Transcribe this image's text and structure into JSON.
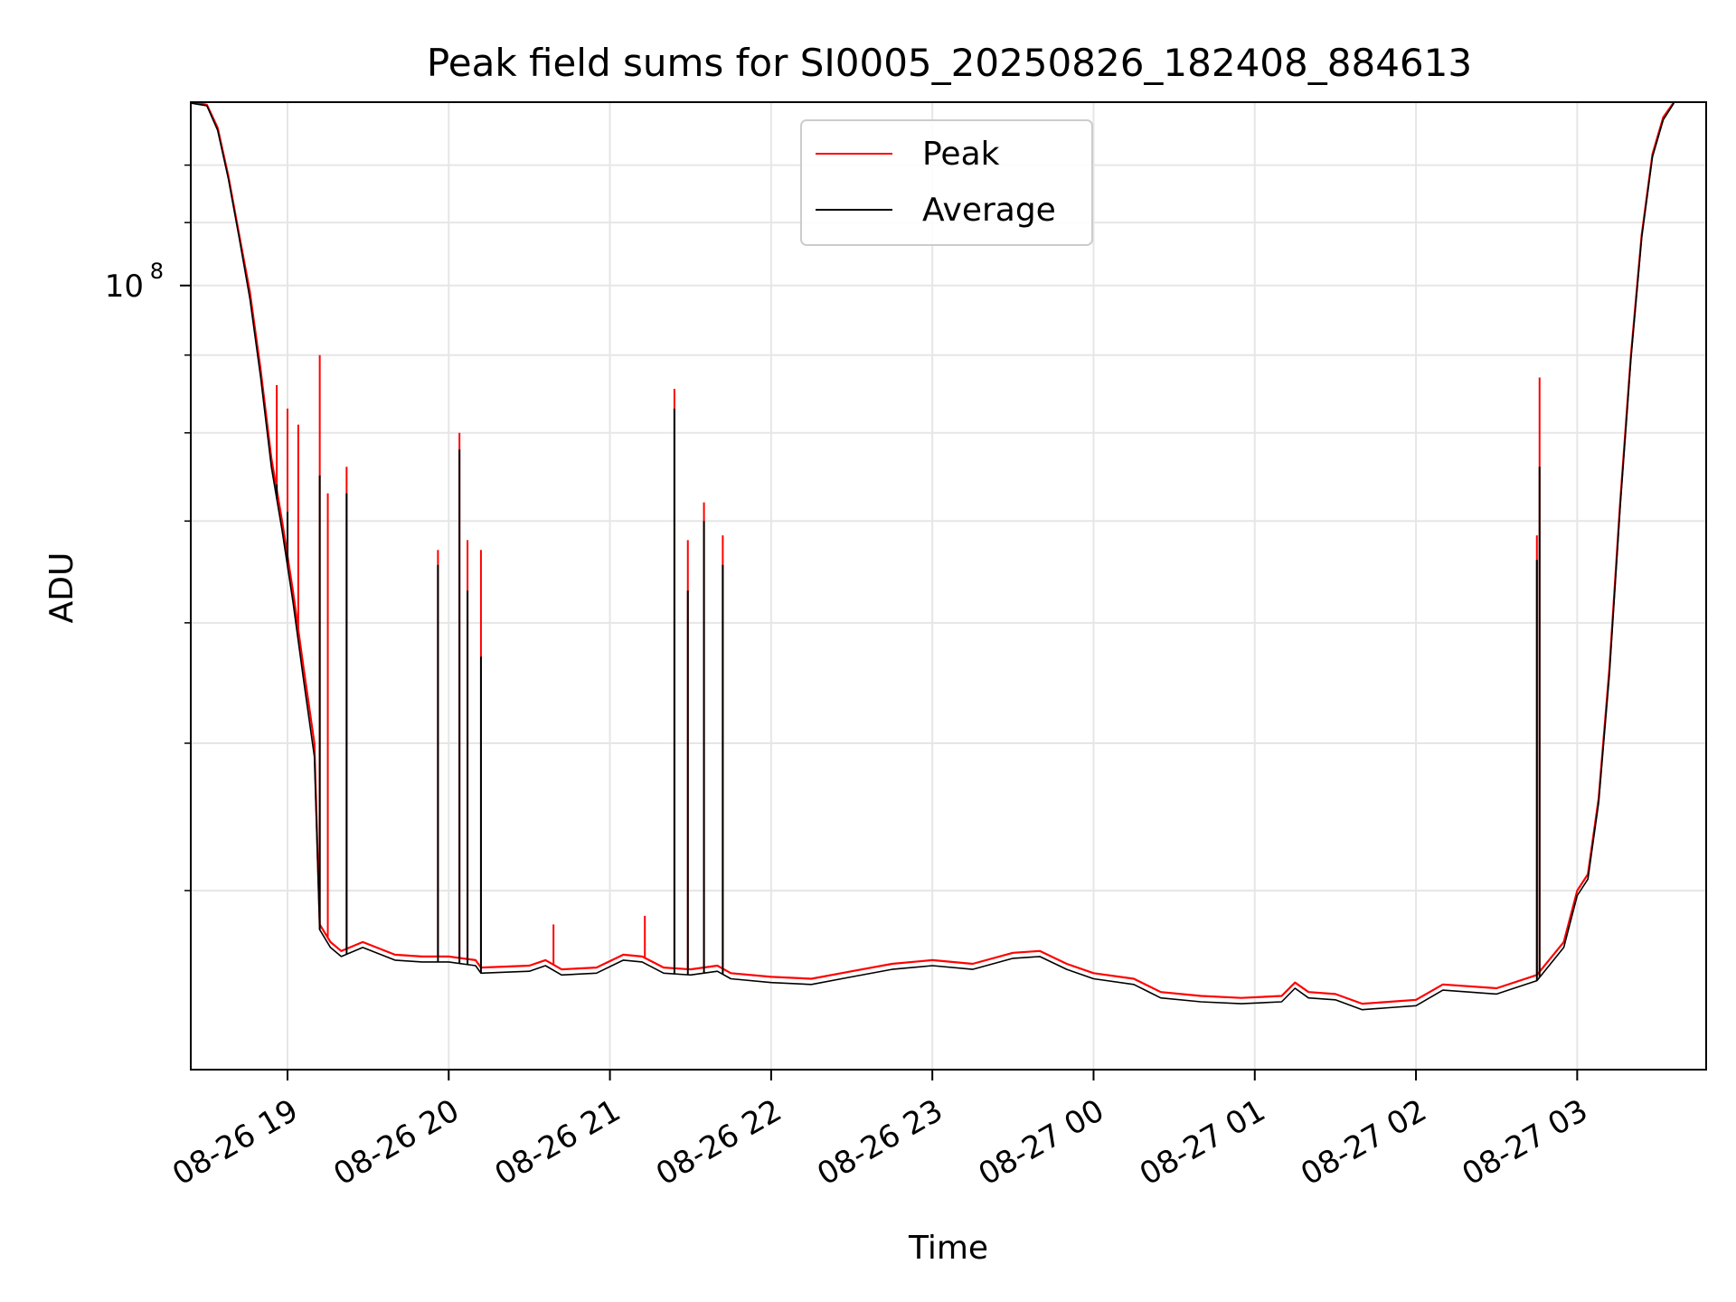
{
  "chart_data": {
    "type": "line",
    "title": "Peak field sums for SI0005_20250826_182408_884613",
    "xlabel": "Time",
    "ylabel": "ADU",
    "y_scale": "log",
    "ylim": [
      30500000,
      132000000
    ],
    "xlim": [
      "2025-08-26 18:24",
      "2025-08-27 03:48"
    ],
    "x_ticks": [
      "08-26 19",
      "08-26 20",
      "08-26 21",
      "08-26 22",
      "08-26 23",
      "08-27 00",
      "08-27 01",
      "08-27 02",
      "08-27 03"
    ],
    "x_tick_times": [
      "2025-08-26 19:00",
      "2025-08-26 20:00",
      "2025-08-26 21:00",
      "2025-08-26 22:00",
      "2025-08-26 23:00",
      "2025-08-27 00:00",
      "2025-08-27 01:00",
      "2025-08-27 02:00",
      "2025-08-27 03:00"
    ],
    "y_ticks": [
      {
        "label": "10",
        "exponent": "8",
        "value": 100000000
      }
    ],
    "y_minor_ticks": [
      40000000,
      50000000,
      60000000,
      70000000,
      80000000,
      90000000,
      110000000,
      120000000
    ],
    "grid": true,
    "legend_position": "upper center",
    "series": [
      {
        "name": "Peak",
        "color": "#ff0000",
        "points": [
          [
            "2025-08-26 18:24",
            132000000
          ],
          [
            "2025-08-26 18:30",
            131500000
          ],
          [
            "2025-08-26 18:34",
            127000000
          ],
          [
            "2025-08-26 18:38",
            118000000
          ],
          [
            "2025-08-26 18:42",
            108000000
          ],
          [
            "2025-08-26 18:46",
            99000000
          ],
          [
            "2025-08-26 18:50",
            88000000
          ],
          [
            "2025-08-26 18:54",
            77000000
          ],
          [
            "2025-08-26 18:58",
            70000000
          ],
          [
            "2025-08-26 19:02",
            63000000
          ],
          [
            "2025-08-26 19:06",
            56000000
          ],
          [
            "2025-08-26 19:10",
            50000000
          ],
          [
            "2025-08-26 19:12",
            38000000
          ],
          [
            "2025-08-26 19:16",
            37000000
          ],
          [
            "2025-08-26 19:20",
            36500000
          ],
          [
            "2025-08-26 19:28",
            37000000
          ],
          [
            "2025-08-26 19:40",
            36300000
          ],
          [
            "2025-08-26 19:50",
            36200000
          ],
          [
            "2025-08-26 20:00",
            36200000
          ],
          [
            "2025-08-26 20:10",
            36000000
          ],
          [
            "2025-08-26 20:12",
            35600000
          ],
          [
            "2025-08-26 20:30",
            35700000
          ],
          [
            "2025-08-26 20:36",
            36000000
          ],
          [
            "2025-08-26 20:42",
            35500000
          ],
          [
            "2025-08-26 20:55",
            35600000
          ],
          [
            "2025-08-26 21:05",
            36300000
          ],
          [
            "2025-08-26 21:12",
            36200000
          ],
          [
            "2025-08-26 21:20",
            35600000
          ],
          [
            "2025-08-26 21:30",
            35500000
          ],
          [
            "2025-08-26 21:40",
            35700000
          ],
          [
            "2025-08-26 21:45",
            35300000
          ],
          [
            "2025-08-26 22:00",
            35100000
          ],
          [
            "2025-08-26 22:15",
            35000000
          ],
          [
            "2025-08-26 22:30",
            35400000
          ],
          [
            "2025-08-26 22:45",
            35800000
          ],
          [
            "2025-08-26 23:00",
            36000000
          ],
          [
            "2025-08-26 23:15",
            35800000
          ],
          [
            "2025-08-26 23:30",
            36400000
          ],
          [
            "2025-08-26 23:40",
            36500000
          ],
          [
            "2025-08-26 23:50",
            35800000
          ],
          [
            "2025-08-27 00:00",
            35300000
          ],
          [
            "2025-08-27 00:15",
            35000000
          ],
          [
            "2025-08-27 00:25",
            34300000
          ],
          [
            "2025-08-27 00:40",
            34100000
          ],
          [
            "2025-08-27 00:55",
            34000000
          ],
          [
            "2025-08-27 01:10",
            34100000
          ],
          [
            "2025-08-27 01:15",
            34800000
          ],
          [
            "2025-08-27 01:20",
            34300000
          ],
          [
            "2025-08-27 01:30",
            34200000
          ],
          [
            "2025-08-27 01:40",
            33700000
          ],
          [
            "2025-08-27 01:50",
            33800000
          ],
          [
            "2025-08-27 02:00",
            33900000
          ],
          [
            "2025-08-27 02:10",
            34700000
          ],
          [
            "2025-08-27 02:30",
            34500000
          ],
          [
            "2025-08-27 02:45",
            35200000
          ],
          [
            "2025-08-27 02:55",
            37000000
          ],
          [
            "2025-08-27 03:00",
            40000000
          ],
          [
            "2025-08-27 03:04",
            41000000
          ],
          [
            "2025-08-27 03:08",
            46000000
          ],
          [
            "2025-08-27 03:12",
            56000000
          ],
          [
            "2025-08-27 03:16",
            72000000
          ],
          [
            "2025-08-27 03:20",
            90000000
          ],
          [
            "2025-08-27 03:24",
            108000000
          ],
          [
            "2025-08-27 03:28",
            122000000
          ],
          [
            "2025-08-27 03:32",
            129000000
          ],
          [
            "2025-08-27 03:36",
            132000000
          ]
        ],
        "spikes": [
          [
            "2025-08-26 18:56",
            86000000
          ],
          [
            "2025-08-26 19:00",
            83000000
          ],
          [
            "2025-08-26 19:04",
            81000000
          ],
          [
            "2025-08-26 19:12",
            90000000
          ],
          [
            "2025-08-26 19:15",
            73000000
          ],
          [
            "2025-08-26 19:22",
            76000000
          ],
          [
            "2025-08-26 19:56",
            67000000
          ],
          [
            "2025-08-26 20:04",
            80000000
          ],
          [
            "2025-08-26 20:07",
            68000000
          ],
          [
            "2025-08-26 20:12",
            67000000
          ],
          [
            "2025-08-26 20:39",
            38000000
          ],
          [
            "2025-08-26 21:13",
            38500000
          ],
          [
            "2025-08-26 21:24",
            85500000
          ],
          [
            "2025-08-26 21:29",
            68000000
          ],
          [
            "2025-08-26 21:35",
            72000000
          ],
          [
            "2025-08-26 21:42",
            68500000
          ],
          [
            "2025-08-27 02:45",
            68500000
          ],
          [
            "2025-08-27 02:46",
            87000000
          ]
        ]
      },
      {
        "name": "Average",
        "color": "#000000",
        "points": [
          [
            "2025-08-26 18:24",
            131800000
          ],
          [
            "2025-08-26 18:30",
            131300000
          ],
          [
            "2025-08-26 18:34",
            126500000
          ],
          [
            "2025-08-26 18:38",
            117500000
          ],
          [
            "2025-08-26 18:42",
            107500000
          ],
          [
            "2025-08-26 18:46",
            98000000
          ],
          [
            "2025-08-26 18:50",
            87000000
          ],
          [
            "2025-08-26 18:54",
            76000000
          ],
          [
            "2025-08-26 18:58",
            69000000
          ],
          [
            "2025-08-26 19:02",
            62000000
          ],
          [
            "2025-08-26 19:06",
            55000000
          ],
          [
            "2025-08-26 19:10",
            49000000
          ],
          [
            "2025-08-26 19:12",
            37700000
          ],
          [
            "2025-08-26 19:16",
            36700000
          ],
          [
            "2025-08-26 19:20",
            36200000
          ],
          [
            "2025-08-26 19:28",
            36700000
          ],
          [
            "2025-08-26 19:40",
            36000000
          ],
          [
            "2025-08-26 19:50",
            35900000
          ],
          [
            "2025-08-26 20:00",
            35900000
          ],
          [
            "2025-08-26 20:10",
            35700000
          ],
          [
            "2025-08-26 20:12",
            35300000
          ],
          [
            "2025-08-26 20:30",
            35400000
          ],
          [
            "2025-08-26 20:36",
            35700000
          ],
          [
            "2025-08-26 20:42",
            35200000
          ],
          [
            "2025-08-26 20:55",
            35300000
          ],
          [
            "2025-08-26 21:05",
            36000000
          ],
          [
            "2025-08-26 21:12",
            35900000
          ],
          [
            "2025-08-26 21:20",
            35300000
          ],
          [
            "2025-08-26 21:30",
            35200000
          ],
          [
            "2025-08-26 21:40",
            35400000
          ],
          [
            "2025-08-26 21:45",
            35000000
          ],
          [
            "2025-08-26 22:00",
            34800000
          ],
          [
            "2025-08-26 22:15",
            34700000
          ],
          [
            "2025-08-26 22:30",
            35100000
          ],
          [
            "2025-08-26 22:45",
            35500000
          ],
          [
            "2025-08-26 23:00",
            35700000
          ],
          [
            "2025-08-26 23:15",
            35500000
          ],
          [
            "2025-08-26 23:30",
            36100000
          ],
          [
            "2025-08-26 23:40",
            36200000
          ],
          [
            "2025-08-26 23:50",
            35500000
          ],
          [
            "2025-08-27 00:00",
            35000000
          ],
          [
            "2025-08-27 00:15",
            34700000
          ],
          [
            "2025-08-27 00:25",
            34000000
          ],
          [
            "2025-08-27 00:40",
            33800000
          ],
          [
            "2025-08-27 00:55",
            33700000
          ],
          [
            "2025-08-27 01:10",
            33800000
          ],
          [
            "2025-08-27 01:15",
            34500000
          ],
          [
            "2025-08-27 01:20",
            34000000
          ],
          [
            "2025-08-27 01:30",
            33900000
          ],
          [
            "2025-08-27 01:40",
            33400000
          ],
          [
            "2025-08-27 01:50",
            33500000
          ],
          [
            "2025-08-27 02:00",
            33600000
          ],
          [
            "2025-08-27 02:10",
            34400000
          ],
          [
            "2025-08-27 02:30",
            34200000
          ],
          [
            "2025-08-27 02:45",
            34900000
          ],
          [
            "2025-08-27 02:55",
            36700000
          ],
          [
            "2025-08-27 03:00",
            39700000
          ],
          [
            "2025-08-27 03:04",
            40700000
          ],
          [
            "2025-08-27 03:08",
            45700000
          ],
          [
            "2025-08-27 03:12",
            55500000
          ],
          [
            "2025-08-27 03:16",
            71500000
          ],
          [
            "2025-08-27 03:20",
            89500000
          ],
          [
            "2025-08-27 03:24",
            107500000
          ],
          [
            "2025-08-27 03:28",
            121500000
          ],
          [
            "2025-08-27 03:32",
            128500000
          ],
          [
            "2025-08-27 03:36",
            131800000
          ]
        ],
        "spikes": [
          [
            "2025-08-26 18:56",
            74000000
          ],
          [
            "2025-08-26 19:00",
            71000000
          ],
          [
            "2025-08-26 19:12",
            75000000
          ],
          [
            "2025-08-26 19:22",
            73000000
          ],
          [
            "2025-08-26 19:56",
            65500000
          ],
          [
            "2025-08-26 20:04",
            78000000
          ],
          [
            "2025-08-26 20:07",
            63000000
          ],
          [
            "2025-08-26 20:12",
            57000000
          ],
          [
            "2025-08-26 21:24",
            83000000
          ],
          [
            "2025-08-26 21:29",
            63000000
          ],
          [
            "2025-08-26 21:35",
            70000000
          ],
          [
            "2025-08-26 21:42",
            65500000
          ],
          [
            "2025-08-27 02:45",
            66000000
          ],
          [
            "2025-08-27 02:46",
            76000000
          ]
        ]
      }
    ]
  }
}
